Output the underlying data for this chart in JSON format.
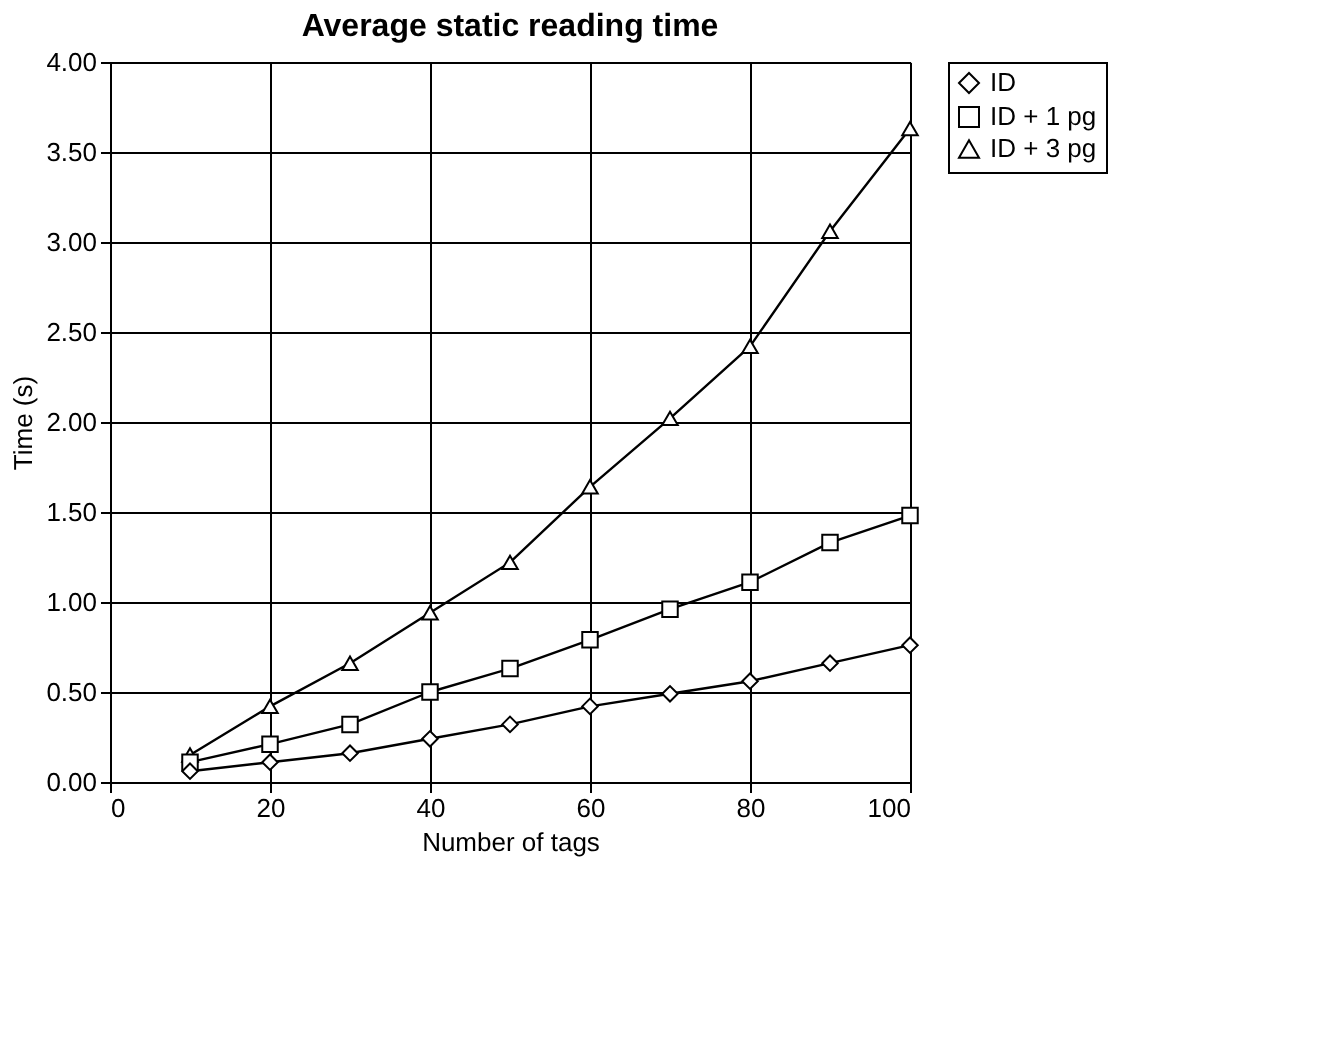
{
  "chart_data": {
    "type": "line",
    "title": "Average static reading time",
    "xlabel": "Number of tags",
    "ylabel": "Time (s)",
    "x": [
      10,
      20,
      30,
      40,
      50,
      60,
      70,
      80,
      90,
      100
    ],
    "series": [
      {
        "name": "ID",
        "color": "#000000",
        "marker": "diamond",
        "values": [
          0.06,
          0.11,
          0.16,
          0.24,
          0.32,
          0.42,
          0.49,
          0.56,
          0.66,
          0.76
        ]
      },
      {
        "name": "ID + 1 pg",
        "color": "#000000",
        "marker": "square",
        "values": [
          0.11,
          0.21,
          0.32,
          0.5,
          0.63,
          0.79,
          0.96,
          1.11,
          1.33,
          1.48
        ]
      },
      {
        "name": "ID + 3 pg",
        "color": "#000000",
        "marker": "triangle",
        "values": [
          0.15,
          0.42,
          0.66,
          0.94,
          1.22,
          1.64,
          2.02,
          2.42,
          3.06,
          3.63
        ]
      }
    ],
    "xlim": [
      0,
      100
    ],
    "xticks": [
      0,
      20,
      40,
      60,
      80,
      100
    ],
    "ylim": [
      0,
      4
    ],
    "yticks": [
      {
        "value": 0,
        "label": "0.00"
      },
      {
        "value": 0.5,
        "label": "0.50"
      },
      {
        "value": 1,
        "label": "1.00"
      },
      {
        "value": 1.5,
        "label": "1.50"
      },
      {
        "value": 2,
        "label": "2.00"
      },
      {
        "value": 2.5,
        "label": "2.50"
      },
      {
        "value": 3,
        "label": "3.00"
      },
      {
        "value": 3.5,
        "label": "3.50"
      },
      {
        "value": 4,
        "label": "4.00"
      }
    ],
    "grid": true,
    "legend": "right",
    "line_style": "solid"
  }
}
